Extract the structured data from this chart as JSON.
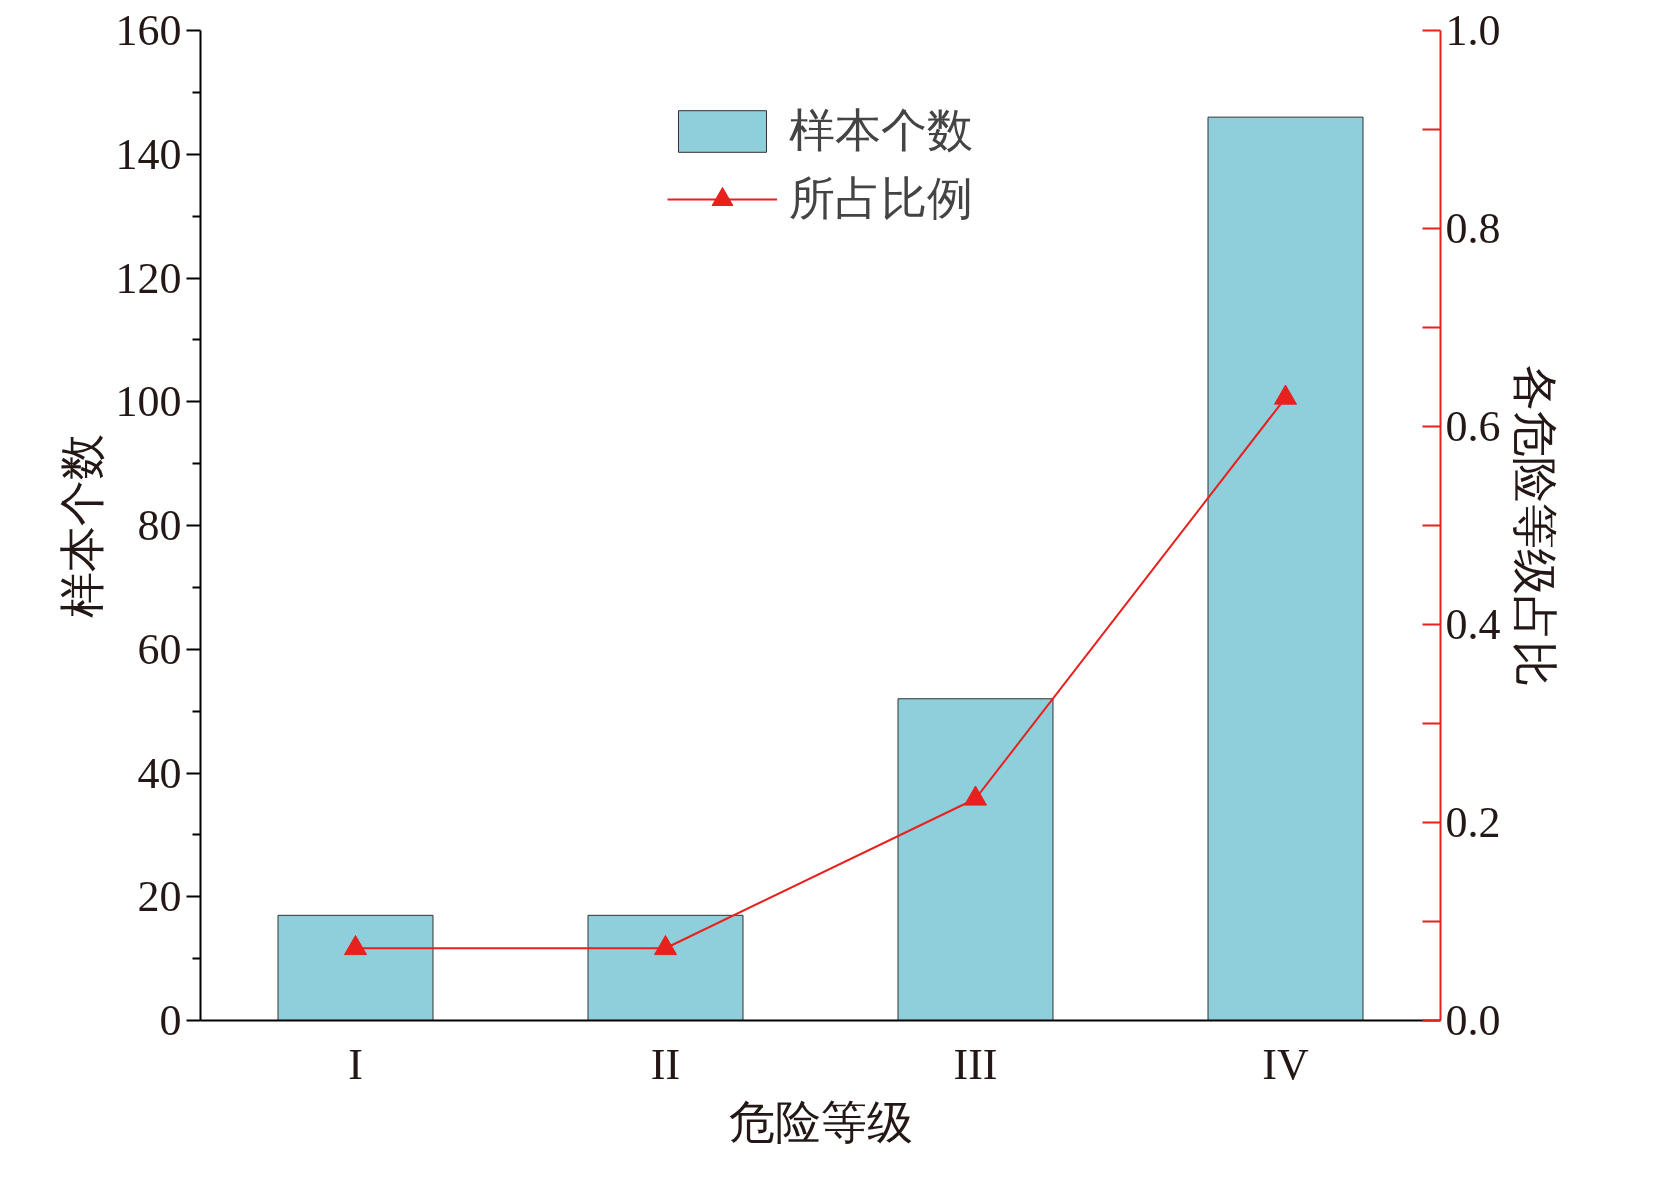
{
  "chart_data": {
    "type": "bar",
    "xlabel": "危险等级",
    "ylabel": "样本个数",
    "y2label": "各危险等级占比",
    "categories": [
      "I",
      "II",
      "III",
      "IV"
    ],
    "series": [
      {
        "name": "样本个数",
        "color": "#8ecfdb",
        "values": [
          17,
          17,
          52,
          146
        ]
      },
      {
        "name": "所占比例",
        "type": "line",
        "axis": "y2",
        "color": "#e8201e",
        "marker": "triangle",
        "values": [
          0.073,
          0.073,
          0.224,
          0.629
        ]
      }
    ],
    "ylim": [
      0,
      160
    ],
    "yticks": [
      0,
      20,
      40,
      60,
      80,
      100,
      120,
      140,
      160
    ],
    "y2lim": [
      0,
      1.0
    ],
    "y2ticks": [
      {
        "value": 0,
        "label": "0.0"
      },
      {
        "value": 0.2,
        "label": "0.2"
      },
      {
        "value": 0.4,
        "label": "0.4"
      },
      {
        "value": 0.6,
        "label": "0.6"
      },
      {
        "value": 0.8,
        "label": "0.8"
      },
      {
        "value": 1.0,
        "label": "1.0"
      }
    ],
    "legend": "top",
    "grid": false
  }
}
